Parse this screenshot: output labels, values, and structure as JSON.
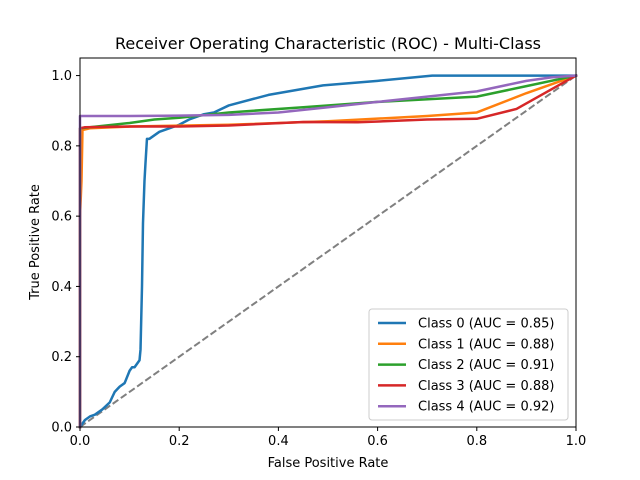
{
  "chart_data": {
    "type": "line",
    "title": "Receiver Operating Characteristic (ROC) - Multi-Class",
    "xlabel": "False Positive Rate",
    "ylabel": "True Positive Rate",
    "xlim": [
      0,
      1
    ],
    "ylim": [
      0,
      1.05
    ],
    "xticks": [
      "0.0",
      "0.2",
      "0.4",
      "0.6",
      "0.8",
      "1.0"
    ],
    "yticks": [
      "0.0",
      "0.2",
      "0.4",
      "0.6",
      "0.8",
      "1.0"
    ],
    "grid": false,
    "legend_position": "lower-right",
    "diagonal": {
      "color": "#808080",
      "style": "dashed",
      "x": [
        0,
        1
      ],
      "y": [
        0,
        1
      ]
    },
    "series": [
      {
        "name": "Class 0 (AUC = 0.85)",
        "color": "#1f77b4",
        "x": [
          0,
          0.01,
          0.02,
          0.03,
          0.045,
          0.06,
          0.07,
          0.08,
          0.09,
          0.1,
          0.105,
          0.11,
          0.12,
          0.122,
          0.125,
          0.127,
          0.13,
          0.132,
          0.135,
          0.14,
          0.15,
          0.16,
          0.18,
          0.2,
          0.22,
          0.25,
          0.27,
          0.3,
          0.38,
          0.49,
          0.6,
          0.71,
          0.8,
          0.9,
          1.0
        ],
        "y": [
          0,
          0.02,
          0.03,
          0.035,
          0.05,
          0.07,
          0.1,
          0.115,
          0.125,
          0.16,
          0.17,
          0.17,
          0.19,
          0.22,
          0.4,
          0.58,
          0.7,
          0.75,
          0.82,
          0.82,
          0.83,
          0.84,
          0.85,
          0.86,
          0.875,
          0.89,
          0.895,
          0.915,
          0.945,
          0.972,
          0.985,
          1.0,
          1.0,
          1.0,
          1.0
        ]
      },
      {
        "name": "Class 1 (AUC = 0.88)",
        "color": "#ff7f0e",
        "x": [
          0,
          0.0,
          0.003,
          0.005,
          0.02,
          0.1,
          0.3,
          0.5,
          0.7,
          0.8,
          0.9,
          1.0
        ],
        "y": [
          0,
          0.6,
          0.7,
          0.845,
          0.85,
          0.855,
          0.86,
          0.87,
          0.885,
          0.895,
          0.95,
          1.0
        ]
      },
      {
        "name": "Class 2 (AUC = 0.91)",
        "color": "#2ca02c",
        "x": [
          0,
          0.0,
          0.02,
          0.1,
          0.15,
          0.2,
          0.3,
          0.45,
          0.6,
          0.8,
          0.9,
          1.0
        ],
        "y": [
          0,
          0.85,
          0.853,
          0.865,
          0.875,
          0.88,
          0.895,
          0.91,
          0.925,
          0.94,
          0.97,
          1.0
        ]
      },
      {
        "name": "Class 3 (AUC = 0.88)",
        "color": "#d62728",
        "x": [
          0,
          0.0,
          0.01,
          0.1,
          0.2,
          0.3,
          0.45,
          0.56,
          0.7,
          0.8,
          0.88,
          1.0
        ],
        "y": [
          0,
          0.85,
          0.853,
          0.855,
          0.855,
          0.858,
          0.868,
          0.867,
          0.875,
          0.877,
          0.905,
          1.0
        ]
      },
      {
        "name": "Class 4 (AUC = 0.92)",
        "color": "#9467bd",
        "x": [
          0,
          0.0,
          0.1,
          0.2,
          0.3,
          0.4,
          0.5,
          0.6,
          0.7,
          0.8,
          0.9,
          0.95,
          1.0
        ],
        "y": [
          0,
          0.885,
          0.885,
          0.886,
          0.888,
          0.895,
          0.91,
          0.925,
          0.94,
          0.955,
          0.985,
          0.995,
          1.0
        ]
      }
    ]
  }
}
